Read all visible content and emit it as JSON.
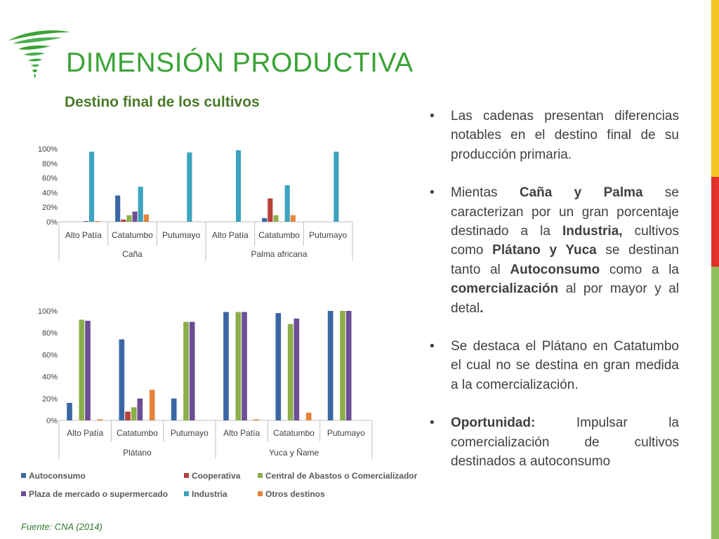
{
  "slide": {
    "title": "DIMENSIÓN PRODUCTIVA",
    "subtitle": "Destino final de los cultivos",
    "source": "Fuente: CNA (2014)"
  },
  "colors": {
    "title_green": "#3aa335",
    "logo_green": "#3aa335",
    "side_bar_top": "#ffffff",
    "side_bar_yellow": "#f3c623",
    "side_bar_red": "#e0312b",
    "side_bar_green": "#8fbf59"
  },
  "legend": [
    {
      "label": "Autoconsumo",
      "color": "#3a67a4"
    },
    {
      "label": "Cooperativa",
      "color": "#b8413c"
    },
    {
      "label": "Central de Abastos o Comercializador",
      "color": "#8caf4b"
    },
    {
      "label": "Plaza de mercado o supermercado",
      "color": "#6d4e94"
    },
    {
      "label": "Industria",
      "color": "#3ca3bf"
    },
    {
      "label": "Otros destinos",
      "color": "#e6833a"
    }
  ],
  "bullets": [
    {
      "parts": [
        {
          "t": "Las cadenas presentan diferencias notables en el destino final de su producción primaria.",
          "b": false
        }
      ]
    },
    {
      "parts": [
        {
          "t": "Mientas ",
          "b": false
        },
        {
          "t": "Caña y Palma",
          "b": true
        },
        {
          "t": " se caracterizan por un gran porcentaje destinado a la ",
          "b": false
        },
        {
          "t": "Industria,",
          "b": true
        },
        {
          "t": " cultivos como ",
          "b": false
        },
        {
          "t": "Plátano y Yuca",
          "b": true
        },
        {
          "t": " se destinan tanto al ",
          "b": false
        },
        {
          "t": "Autoconsumo",
          "b": true
        },
        {
          "t": " como a la ",
          "b": false
        },
        {
          "t": "comercialización",
          "b": true
        },
        {
          "t": " al por mayor y al detal",
          "b": false
        },
        {
          "t": ".",
          "b": true
        }
      ]
    },
    {
      "parts": [
        {
          "t": "Se destaca el Plátano en Catatumbo el cual no se destina en gran medida a la comercialización.",
          "b": false
        }
      ]
    },
    {
      "parts": [
        {
          "t": "Oportunidad:",
          "b": true
        },
        {
          "t": " Impulsar la comercialización de cultivos destinados a autoconsumo",
          "b": false
        }
      ]
    }
  ],
  "chart_data": [
    {
      "type": "bar",
      "title": "",
      "ylim": [
        0,
        100
      ],
      "yticks": [
        "0%",
        "20%",
        "40%",
        "60%",
        "80%",
        "100%"
      ],
      "groups": [
        {
          "name": "Caña",
          "categories": [
            "Alto Patía",
            "Catatumbo",
            "Putumayo"
          ]
        },
        {
          "name": "Palma africana",
          "categories": [
            "Alto Patía",
            "Catatumbo",
            "Putumayo"
          ]
        }
      ],
      "series": [
        {
          "name": "Autoconsumo",
          "values": [
            0,
            36,
            0,
            0,
            5,
            0
          ]
        },
        {
          "name": "Cooperativa",
          "values": [
            0,
            3,
            0,
            0,
            32,
            0
          ]
        },
        {
          "name": "Central de Abastos o Comercializador",
          "values": [
            0,
            9,
            0,
            0,
            9,
            0
          ]
        },
        {
          "name": "Plaza de mercado o supermercado",
          "values": [
            1,
            14,
            0,
            0,
            0,
            0
          ]
        },
        {
          "name": "Industria",
          "values": [
            96,
            48,
            95,
            98,
            50,
            96
          ]
        },
        {
          "name": "Otros destinos",
          "values": [
            1,
            10,
            0,
            0,
            9,
            0
          ]
        }
      ]
    },
    {
      "type": "bar",
      "title": "",
      "ylim": [
        0,
        100
      ],
      "yticks": [
        "0%",
        "20%",
        "40%",
        "60%",
        "80%",
        "100%"
      ],
      "groups": [
        {
          "name": "Plátano",
          "categories": [
            "Alto Patía",
            "Catatumbo",
            "Putumayo"
          ]
        },
        {
          "name": "Yuca y Ñame",
          "categories": [
            "Alto Patía",
            "Catatumbo",
            "Putumayo"
          ]
        }
      ],
      "series": [
        {
          "name": "Autoconsumo",
          "values": [
            16,
            74,
            20,
            99,
            98,
            100
          ]
        },
        {
          "name": "Cooperativa",
          "values": [
            0,
            8,
            0,
            0,
            0,
            0
          ]
        },
        {
          "name": "Central de Abastos o Comercializador",
          "values": [
            92,
            12,
            90,
            99,
            88,
            100
          ]
        },
        {
          "name": "Plaza de mercado o supermercado",
          "values": [
            91,
            20,
            90,
            99,
            93,
            100
          ]
        },
        {
          "name": "Industria",
          "values": [
            0,
            0,
            0,
            0,
            0,
            0
          ]
        },
        {
          "name": "Otros destinos",
          "values": [
            1,
            28,
            0,
            1,
            7,
            0
          ]
        }
      ]
    }
  ]
}
